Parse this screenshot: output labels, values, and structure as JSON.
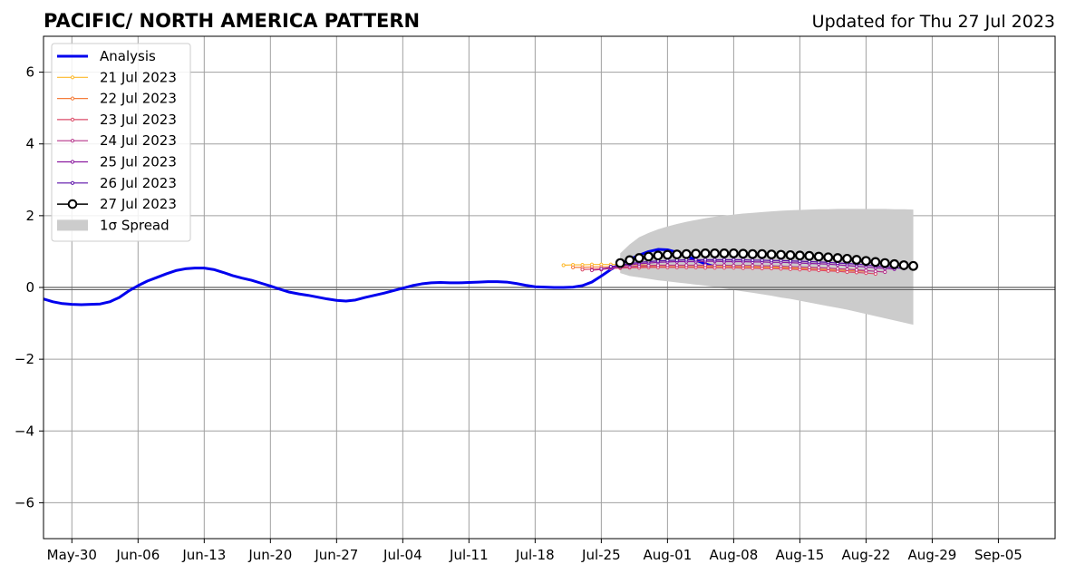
{
  "chart_data": {
    "type": "line",
    "title": "PACIFIC/ NORTH AMERICA PATTERN",
    "subtitle": "Updated for Thu 27 Jul 2023",
    "xlabel": "",
    "ylabel": "",
    "xlim": [
      "2023-05-27",
      "2023-09-11"
    ],
    "ylim": [
      -7,
      7
    ],
    "x_ticks": [
      "May-30",
      "Jun-06",
      "Jun-13",
      "Jun-20",
      "Jun-27",
      "Jul-04",
      "Jul-11",
      "Jul-18",
      "Jul-25",
      "Aug-01",
      "Aug-08",
      "Aug-15",
      "Aug-22",
      "Aug-29",
      "Sep-05"
    ],
    "y_ticks": [
      "6",
      "4",
      "2",
      "0",
      "−2",
      "−4",
      "−6"
    ],
    "y_tick_values": [
      6,
      4,
      2,
      0,
      -2,
      -4,
      -6
    ],
    "grid": true,
    "zero_line": true,
    "legend_position": "upper-left",
    "analysis": {
      "name": "Analysis",
      "color": "#0000ee",
      "start_date": "2023-05-27",
      "values": [
        -0.32,
        -0.4,
        -0.45,
        -0.47,
        -0.48,
        -0.47,
        -0.46,
        -0.4,
        -0.28,
        -0.1,
        0.05,
        0.18,
        0.28,
        0.38,
        0.47,
        0.52,
        0.54,
        0.54,
        0.5,
        0.42,
        0.33,
        0.26,
        0.2,
        0.12,
        0.04,
        -0.05,
        -0.13,
        -0.18,
        -0.22,
        -0.27,
        -0.32,
        -0.36,
        -0.38,
        -0.35,
        -0.28,
        -0.22,
        -0.16,
        -0.09,
        -0.02,
        0.05,
        0.1,
        0.13,
        0.14,
        0.13,
        0.13,
        0.14,
        0.15,
        0.16,
        0.16,
        0.15,
        0.11,
        0.06,
        0.02,
        0.01,
        0.0,
        0.0,
        0.01,
        0.05,
        0.15,
        0.32,
        0.5,
        0.65,
        0.78,
        0.9,
        1.0,
        1.06,
        1.05,
        0.98,
        0.88,
        0.76,
        0.66,
        0.58
      ]
    },
    "forecasts": [
      {
        "name": "21 Jul 2023",
        "color": "#fdb82a",
        "start_date": "2023-07-21",
        "values": [
          0.62,
          0.63,
          0.63,
          0.64,
          0.64,
          0.64,
          0.64,
          0.63,
          0.63,
          0.62,
          0.62,
          0.62,
          0.61,
          0.61,
          0.61,
          0.6,
          0.6,
          0.6,
          0.59,
          0.59,
          0.58,
          0.58,
          0.57,
          0.57,
          0.56,
          0.55,
          0.55,
          0.54,
          0.53,
          0.52,
          0.51,
          0.5
        ]
      },
      {
        "name": "22 Jul 2023",
        "color": "#f57d3b",
        "start_date": "2023-07-22",
        "values": [
          0.56,
          0.56,
          0.57,
          0.57,
          0.58,
          0.58,
          0.58,
          0.58,
          0.58,
          0.58,
          0.58,
          0.57,
          0.57,
          0.57,
          0.57,
          0.56,
          0.56,
          0.56,
          0.55,
          0.55,
          0.55,
          0.54,
          0.54,
          0.53,
          0.52,
          0.51,
          0.5,
          0.49,
          0.48,
          0.47,
          0.46,
          0.45
        ]
      },
      {
        "name": "23 Jul 2023",
        "color": "#db4b68",
        "start_date": "2023-07-23",
        "values": [
          0.5,
          0.51,
          0.52,
          0.53,
          0.54,
          0.55,
          0.55,
          0.56,
          0.56,
          0.56,
          0.56,
          0.56,
          0.56,
          0.55,
          0.55,
          0.55,
          0.55,
          0.54,
          0.54,
          0.53,
          0.53,
          0.52,
          0.51,
          0.5,
          0.49,
          0.48,
          0.46,
          0.45,
          0.43,
          0.42,
          0.4,
          0.38
        ]
      },
      {
        "name": "24 Jul 2023",
        "color": "#b5338a",
        "start_date": "2023-07-24",
        "values": [
          0.48,
          0.5,
          0.53,
          0.56,
          0.58,
          0.6,
          0.61,
          0.62,
          0.62,
          0.62,
          0.62,
          0.62,
          0.62,
          0.62,
          0.62,
          0.61,
          0.61,
          0.61,
          0.6,
          0.6,
          0.59,
          0.58,
          0.57,
          0.56,
          0.55,
          0.54,
          0.52,
          0.51,
          0.49,
          0.47,
          0.45,
          0.43
        ]
      },
      {
        "name": "25 Jul 2023",
        "color": "#8b1a9f",
        "start_date": "2023-07-25",
        "values": [
          0.52,
          0.56,
          0.6,
          0.63,
          0.66,
          0.68,
          0.7,
          0.71,
          0.72,
          0.72,
          0.72,
          0.73,
          0.73,
          0.72,
          0.72,
          0.72,
          0.71,
          0.71,
          0.7,
          0.7,
          0.69,
          0.68,
          0.67,
          0.66,
          0.65,
          0.63,
          0.61,
          0.59,
          0.57,
          0.55,
          0.53,
          0.51
        ]
      },
      {
        "name": "26 Jul 2023",
        "color": "#5a0fa8",
        "start_date": "2023-07-26",
        "values": [
          0.58,
          0.62,
          0.66,
          0.7,
          0.72,
          0.74,
          0.75,
          0.76,
          0.77,
          0.77,
          0.77,
          0.77,
          0.77,
          0.77,
          0.77,
          0.76,
          0.76,
          0.75,
          0.75,
          0.74,
          0.73,
          0.72,
          0.71,
          0.7,
          0.68,
          0.67,
          0.65,
          0.63,
          0.6,
          0.58,
          0.55,
          0.53
        ]
      },
      {
        "name": "27 Jul 2023",
        "color": "#000000",
        "start_date": "2023-07-27",
        "marker": "open-circle",
        "values": [
          0.68,
          0.76,
          0.82,
          0.86,
          0.89,
          0.91,
          0.92,
          0.93,
          0.94,
          0.95,
          0.95,
          0.95,
          0.95,
          0.94,
          0.93,
          0.93,
          0.92,
          0.91,
          0.9,
          0.89,
          0.88,
          0.86,
          0.84,
          0.82,
          0.8,
          0.77,
          0.74,
          0.71,
          0.68,
          0.65,
          0.62,
          0.6
        ]
      }
    ],
    "spread": {
      "name": "1σ Spread",
      "color": "#cccccc",
      "start_date": "2023-07-27",
      "upper": [
        0.95,
        1.2,
        1.4,
        1.52,
        1.62,
        1.7,
        1.77,
        1.83,
        1.88,
        1.93,
        1.97,
        2.0,
        2.03,
        2.06,
        2.08,
        2.1,
        2.12,
        2.14,
        2.15,
        2.16,
        2.17,
        2.18,
        2.18,
        2.19,
        2.19,
        2.19,
        2.19,
        2.19,
        2.19,
        2.18,
        2.18,
        2.17
      ],
      "lower": [
        0.4,
        0.32,
        0.28,
        0.24,
        0.2,
        0.17,
        0.14,
        0.11,
        0.08,
        0.05,
        0.01,
        -0.03,
        -0.07,
        -0.11,
        -0.15,
        -0.19,
        -0.23,
        -0.28,
        -0.32,
        -0.37,
        -0.42,
        -0.47,
        -0.52,
        -0.57,
        -0.62,
        -0.68,
        -0.74,
        -0.8,
        -0.86,
        -0.92,
        -0.98,
        -1.04
      ]
    }
  }
}
